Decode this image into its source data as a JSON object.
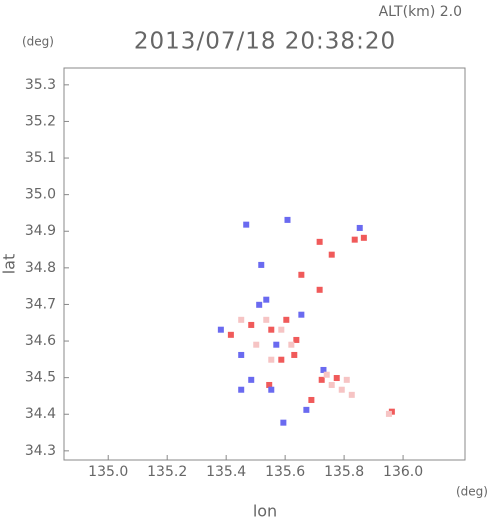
{
  "chart_data": {
    "type": "scatter",
    "title": "2013/07/18 20:38:20",
    "subtitle": "ALT(km) 2.0",
    "x_label": "lon",
    "x_unit": "(deg)",
    "y_label": "lat",
    "y_unit": "(deg)",
    "xlim": [
      134.85,
      136.21
    ],
    "ylim": [
      34.275,
      35.346
    ],
    "xticks": [
      {
        "value": 135,
        "label": "135.0"
      },
      135.2,
      135.4,
      135.6,
      135.8,
      {
        "value": 136,
        "label": "136.0"
      }
    ],
    "yticks": [
      34.3,
      34.4,
      34.5,
      34.6,
      34.7,
      34.8,
      34.9,
      {
        "value": 35,
        "label": "35.0"
      },
      35.1,
      35.2,
      35.3
    ],
    "series": [
      {
        "color": "#f05a5a",
        "x": [
          135.836,
          135.867,
          135.717,
          135.758,
          135.655,
          135.717,
          135.604,
          135.638,
          135.553,
          135.631,
          135.485,
          135.724,
          135.775,
          135.962,
          135.546,
          135.587,
          135.416,
          135.689
        ],
        "y": [
          34.877,
          34.882,
          34.871,
          34.836,
          34.781,
          34.74,
          34.658,
          34.603,
          34.631,
          34.562,
          34.644,
          34.494,
          34.499,
          34.407,
          34.48,
          34.549,
          34.617,
          34.439
        ]
      },
      {
        "color": "#6a6af0",
        "x": [
          135.468,
          135.853,
          135.608,
          135.536,
          135.512,
          135.451,
          135.57,
          135.655,
          135.485,
          135.594,
          135.382,
          135.73,
          135.519,
          135.672,
          135.451,
          135.553
        ],
        "y": [
          34.918,
          34.909,
          34.931,
          34.713,
          34.699,
          34.562,
          34.59,
          34.672,
          34.494,
          34.377,
          34.631,
          34.521,
          34.808,
          34.412,
          34.467,
          34.467
        ]
      },
      {
        "color": "#f6c4c4",
        "x": [
          135.758,
          135.792,
          135.741,
          135.809,
          135.826,
          135.536,
          135.587,
          135.502,
          135.621,
          135.553,
          135.451,
          135.952
        ],
        "y": [
          34.48,
          34.467,
          34.508,
          34.494,
          34.453,
          34.658,
          34.631,
          34.59,
          34.59,
          34.549,
          34.658,
          34.401
        ]
      }
    ]
  }
}
